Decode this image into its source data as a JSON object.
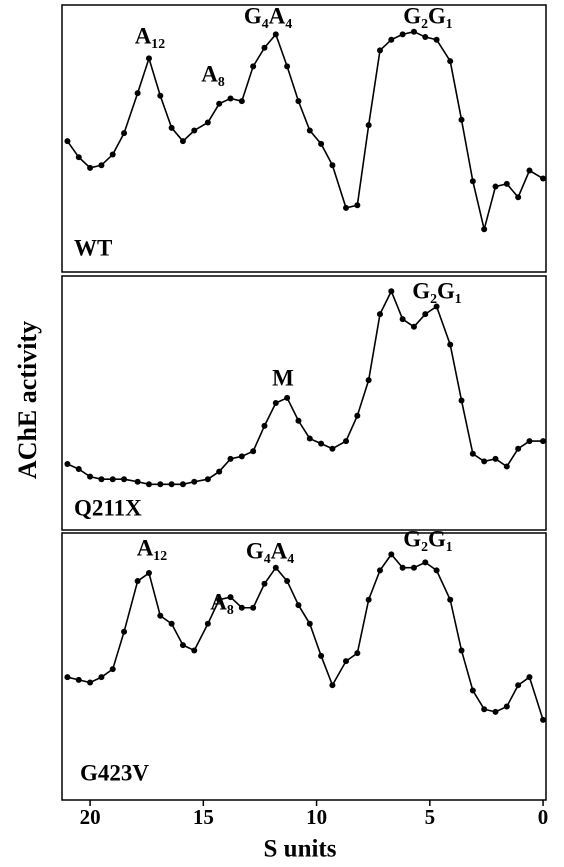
{
  "ylabel": "AChE activity",
  "xlabel": "S units",
  "chart_data": [
    {
      "type": "line",
      "title": "WT",
      "color": "#000000",
      "xlim": [
        21.24,
        -0.13
      ],
      "ylim": [
        0,
        100
      ],
      "x": [
        21.0,
        20.5,
        20.0,
        19.5,
        19.0,
        18.5,
        17.9,
        17.4,
        16.9,
        16.4,
        15.9,
        15.4,
        14.8,
        14.3,
        13.8,
        13.3,
        12.8,
        12.3,
        11.8,
        11.3,
        10.8,
        10.3,
        9.8,
        9.3,
        8.7,
        8.2,
        7.7,
        7.2,
        6.7,
        6.2,
        5.7,
        5.2,
        4.7,
        4.1,
        3.6,
        3.1,
        2.6,
        2.1,
        1.6,
        1.1,
        0.6,
        0.0
      ],
      "values": [
        49,
        43,
        39,
        40,
        44,
        52,
        67,
        80,
        66,
        54,
        49,
        53,
        56,
        63,
        65,
        64,
        77,
        84,
        89,
        77,
        64,
        53,
        48,
        40,
        24,
        25,
        55,
        83,
        87,
        89,
        90,
        88,
        87,
        79,
        57,
        34,
        16,
        32,
        33,
        28,
        38,
        35
      ],
      "annotations": [
        "A₁₂",
        "A₈",
        "G₄A₄",
        "G₂G₁"
      ]
    },
    {
      "type": "line",
      "title": "Q211X",
      "color": "#000000",
      "xlim": [
        21.24,
        -0.13
      ],
      "ylim": [
        0,
        100
      ],
      "x": [
        21.0,
        20.5,
        20.0,
        19.5,
        19.0,
        18.5,
        17.9,
        17.4,
        16.9,
        16.4,
        15.9,
        15.4,
        14.8,
        14.3,
        13.8,
        13.3,
        12.8,
        12.3,
        11.8,
        11.3,
        10.8,
        10.3,
        9.8,
        9.3,
        8.7,
        8.2,
        7.7,
        7.2,
        6.7,
        6.2,
        5.7,
        5.2,
        4.7,
        4.1,
        3.6,
        3.1,
        2.6,
        2.1,
        1.6,
        1.1,
        0.6,
        0.0
      ],
      "values": [
        26,
        24,
        21,
        20,
        20,
        20,
        19,
        18,
        18,
        18,
        18,
        19,
        20,
        23,
        28,
        29,
        31,
        41,
        50,
        52,
        43,
        36,
        34,
        32,
        35,
        45,
        59,
        85,
        94,
        83,
        80,
        85,
        88,
        73,
        51,
        30,
        27,
        28,
        25,
        32,
        35,
        35
      ],
      "annotations": [
        "G₂G₁",
        "M"
      ]
    },
    {
      "type": "line",
      "title": "G423V",
      "color": "#000000",
      "xlim": [
        21.24,
        -0.13
      ],
      "ylim": [
        0,
        100
      ],
      "xticks": [
        20,
        15,
        10,
        5,
        0
      ],
      "x": [
        21.0,
        20.5,
        20.0,
        19.5,
        19.0,
        18.5,
        17.9,
        17.4,
        16.9,
        16.4,
        15.9,
        15.4,
        14.8,
        14.3,
        13.8,
        13.3,
        12.8,
        12.3,
        11.8,
        11.3,
        10.8,
        10.3,
        9.8,
        9.3,
        8.7,
        8.2,
        7.7,
        7.2,
        6.7,
        6.2,
        5.7,
        5.2,
        4.7,
        4.1,
        3.6,
        3.1,
        2.6,
        2.1,
        1.6,
        1.1,
        0.6,
        0.0
      ],
      "values": [
        46,
        45,
        44,
        46,
        49,
        63,
        82,
        85,
        69,
        66,
        58,
        56,
        66,
        75,
        76,
        72,
        72,
        81,
        87,
        82,
        73,
        66,
        54,
        43,
        52,
        55,
        75,
        86,
        92,
        87,
        87,
        89,
        86,
        75,
        56,
        41,
        34,
        33,
        35,
        43,
        46,
        30
      ],
      "annotations": [
        "A₁₂",
        "A₈",
        "G₄A₄",
        "G₂G₁"
      ]
    }
  ]
}
